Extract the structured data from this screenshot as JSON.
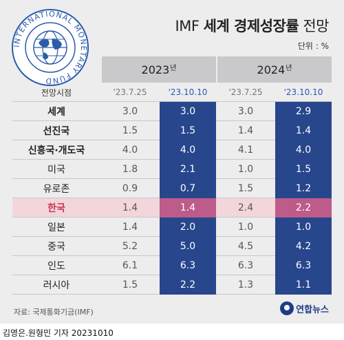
{
  "title_prefix": "IMF",
  "title_bold": "세계 경제성장률",
  "title_suffix": "전망",
  "unit": "단위 : %",
  "seal_text": "INTERNATIONAL MONETARY FUND",
  "years": [
    {
      "label": "2023",
      "suffix": "년"
    },
    {
      "label": "2024",
      "suffix": "년"
    }
  ],
  "subheader": {
    "label": "전망시점",
    "values": [
      "'23.7.25",
      "'23.10.10",
      "'23.7.25",
      "'23.10.10"
    ]
  },
  "rows": [
    {
      "label": "세계",
      "bold": true,
      "values": [
        "3.0",
        "3.0",
        "3.0",
        "2.9"
      ]
    },
    {
      "label": "선진국",
      "bold": true,
      "values": [
        "1.5",
        "1.5",
        "1.4",
        "1.4"
      ]
    },
    {
      "label": "신흥국·개도국",
      "bold": true,
      "values": [
        "4.0",
        "4.0",
        "4.1",
        "4.0"
      ]
    },
    {
      "label": "미국",
      "bold": false,
      "values": [
        "1.8",
        "2.1",
        "1.0",
        "1.5"
      ]
    },
    {
      "label": "유로존",
      "bold": false,
      "values": [
        "0.9",
        "0.7",
        "1.5",
        "1.2"
      ]
    },
    {
      "label": "한국",
      "bold": true,
      "highlight": true,
      "values": [
        "1.4",
        "1.4",
        "2.4",
        "2.2"
      ]
    },
    {
      "label": "일본",
      "bold": false,
      "values": [
        "1.4",
        "2.0",
        "1.0",
        "1.0"
      ]
    },
    {
      "label": "중국",
      "bold": false,
      "values": [
        "5.2",
        "5.0",
        "4.5",
        "4.2"
      ]
    },
    {
      "label": "인도",
      "bold": false,
      "values": [
        "6.1",
        "6.3",
        "6.3",
        "6.3"
      ]
    },
    {
      "label": "러시아",
      "bold": false,
      "values": [
        "1.5",
        "2.2",
        "1.3",
        "1.1"
      ]
    }
  ],
  "source": "자료: 국제통화기금(IMF)",
  "logo": "연합뉴스",
  "credit": "김영은.원형민 기자  20231010"
}
